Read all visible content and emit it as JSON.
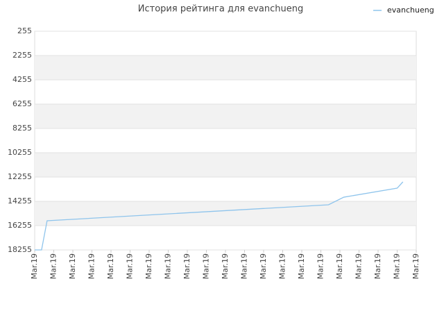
{
  "chart_data": {
    "type": "line",
    "title": "История рейтинга для evanchueng",
    "xlim": [
      0,
      20
    ],
    "xticks": [
      {
        "value": 0,
        "label": "Mar.19"
      },
      {
        "value": 1,
        "label": "Mar.19"
      },
      {
        "value": 2,
        "label": "Mar.19"
      },
      {
        "value": 3,
        "label": "Mar.19"
      },
      {
        "value": 4,
        "label": "Mar.19"
      },
      {
        "value": 5,
        "label": "Mar.19"
      },
      {
        "value": 6,
        "label": "Mar.19"
      },
      {
        "value": 7,
        "label": "Mar.19"
      },
      {
        "value": 8,
        "label": "Mar.19"
      },
      {
        "value": 9,
        "label": "Mar.19"
      },
      {
        "value": 10,
        "label": "Mar.19"
      },
      {
        "value": 11,
        "label": "Mar.19"
      },
      {
        "value": 12,
        "label": "Mar.19"
      },
      {
        "value": 13,
        "label": "Mar.19"
      },
      {
        "value": 14,
        "label": "Mar.19"
      },
      {
        "value": 15,
        "label": "Mar.19"
      },
      {
        "value": 16,
        "label": "Mar.19"
      },
      {
        "value": 17,
        "label": "Mar.19"
      },
      {
        "value": 18,
        "label": "Mar.19"
      },
      {
        "value": 19,
        "label": "Mar.19"
      },
      {
        "value": 20,
        "label": "Mar.19"
      }
    ],
    "ylim": [
      255,
      18255
    ],
    "y_inverted": true,
    "yticks": [
      255,
      2255,
      4255,
      6255,
      8255,
      10255,
      12255,
      14255,
      16255,
      18255
    ],
    "grid": true,
    "legend": "top-right",
    "series": [
      {
        "name": "evanchueng",
        "color": "#8ec4ec",
        "x": [
          0,
          0.36,
          0.65,
          15.4,
          16.2,
          19.0,
          19.3
        ],
        "values": [
          18255,
          18255,
          15855,
          14540,
          13915,
          13170,
          12655
        ]
      }
    ]
  }
}
